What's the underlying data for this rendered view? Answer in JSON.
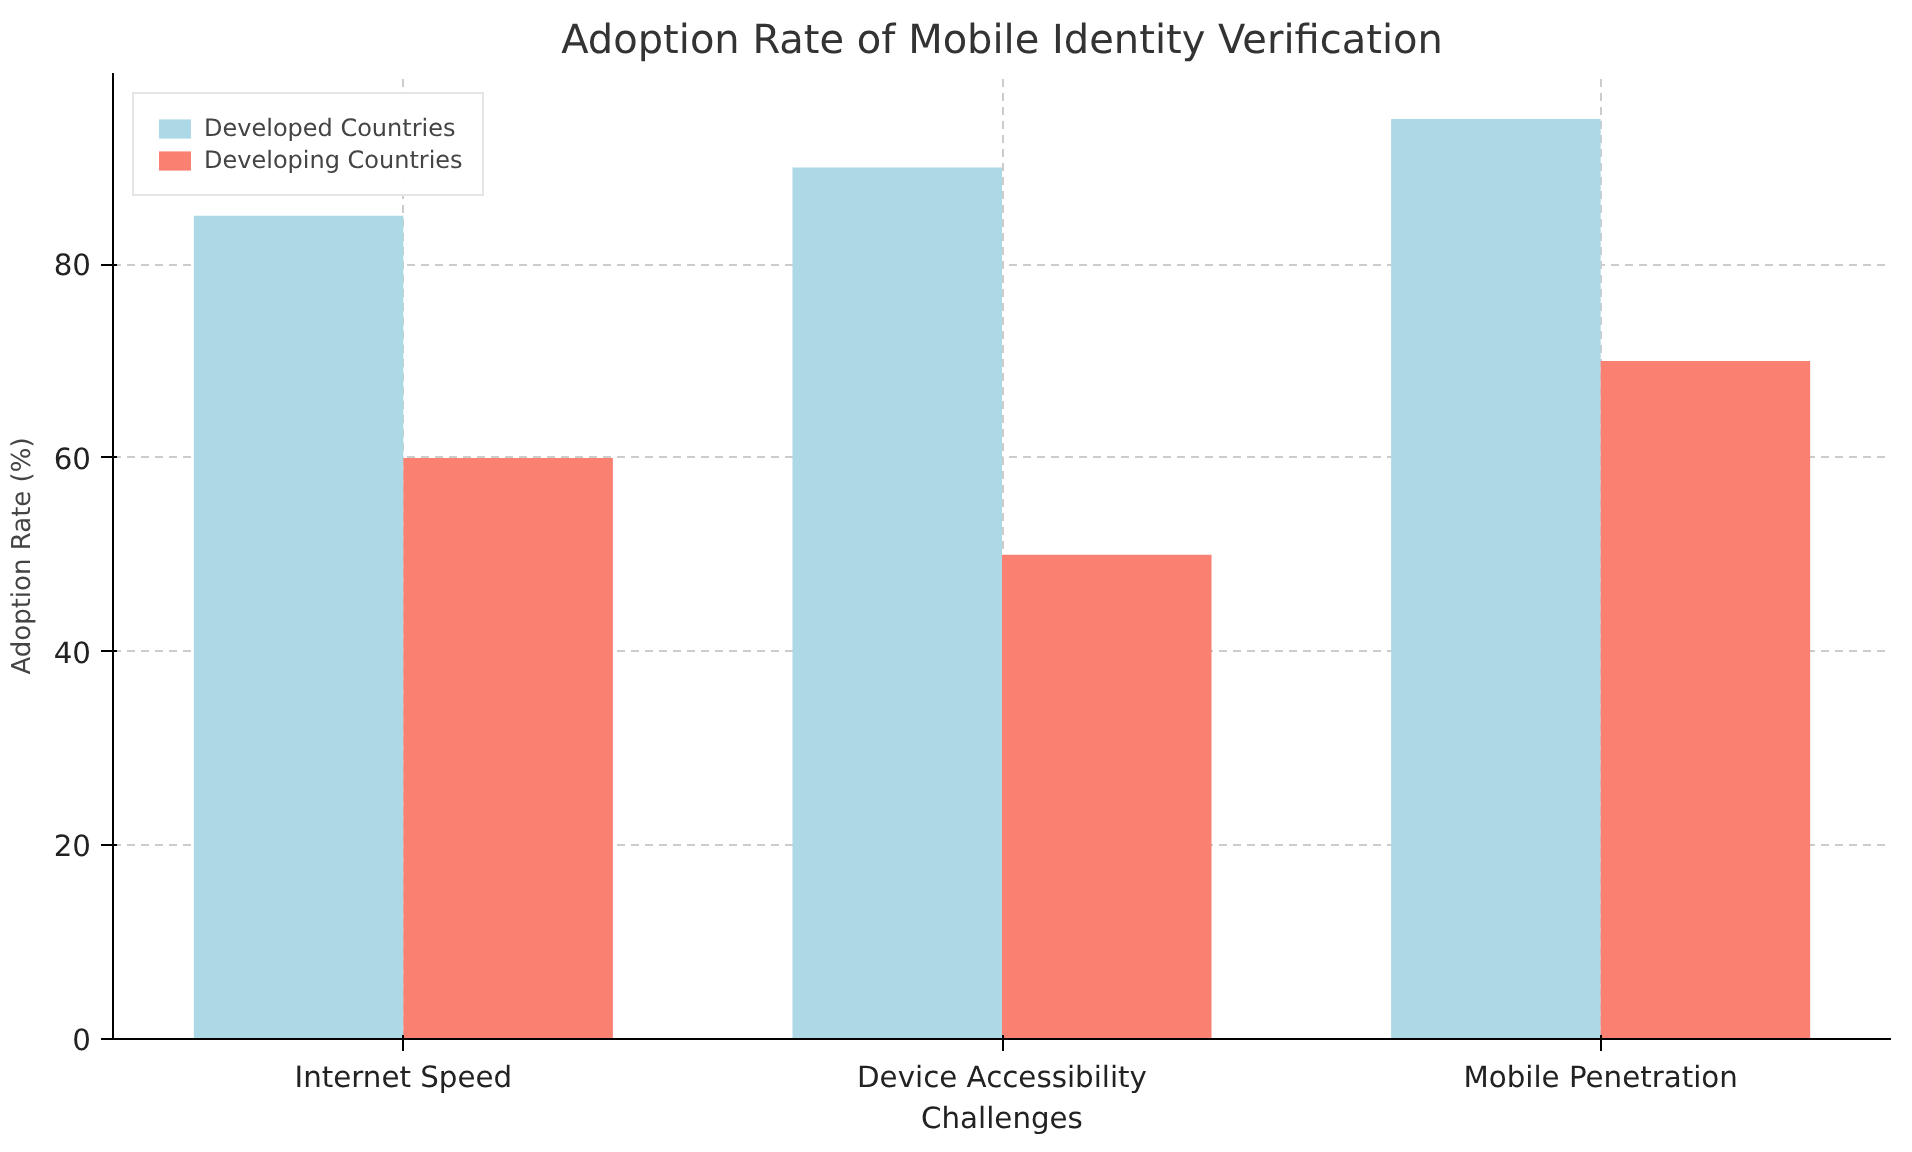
{
  "chart_data": {
    "type": "bar",
    "title": "Adoption Rate of Mobile Identity Verification",
    "ylabel": "Adoption Rate (%)",
    "categories": [
      "Internet Speed",
      "Device Accessibility Challenges",
      "Mobile Penetration"
    ],
    "series": [
      {
        "name": "Developed Countries",
        "color": "#add8e6",
        "values": [
          85,
          90,
          95
        ]
      },
      {
        "name": "Developing Countries",
        "color": "#fa8072",
        "values": [
          60,
          50,
          70
        ]
      }
    ],
    "ylim": [
      0,
      99.75
    ],
    "yticks": [
      0,
      20,
      40,
      60,
      80
    ],
    "grid": true,
    "legend": "top left"
  }
}
